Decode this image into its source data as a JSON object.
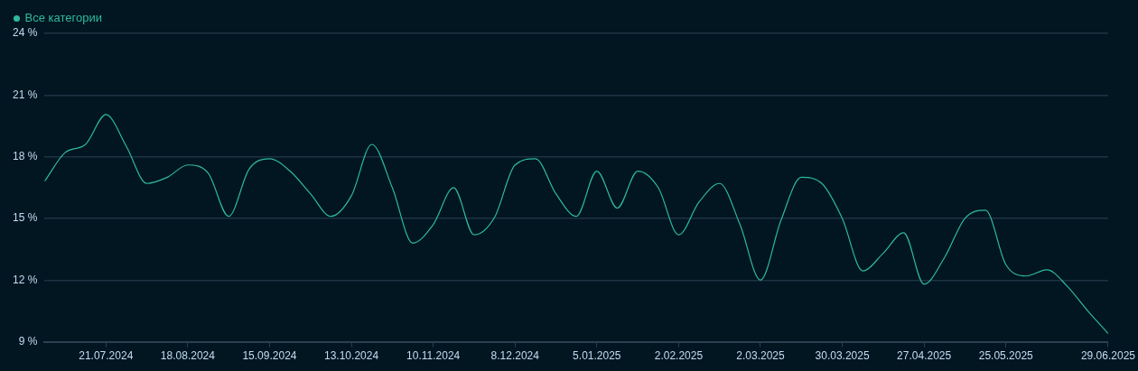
{
  "chart_data": {
    "type": "line",
    "x": [
      "2024-06-30",
      "2024-07-07",
      "2024-07-14",
      "2024-07-21",
      "2024-07-28",
      "2024-08-04",
      "2024-08-11",
      "2024-08-18",
      "2024-08-25",
      "2024-09-01",
      "2024-09-08",
      "2024-09-15",
      "2024-09-22",
      "2024-09-29",
      "2024-10-06",
      "2024-10-13",
      "2024-10-20",
      "2024-10-27",
      "2024-11-03",
      "2024-11-10",
      "2024-11-17",
      "2024-11-24",
      "2024-12-01",
      "2024-12-08",
      "2024-12-15",
      "2024-12-22",
      "2024-12-29",
      "2025-01-05",
      "2025-01-12",
      "2025-01-19",
      "2025-01-26",
      "2025-02-02",
      "2025-02-09",
      "2025-02-16",
      "2025-02-23",
      "2025-03-02",
      "2025-03-09",
      "2025-03-16",
      "2025-03-23",
      "2025-03-30",
      "2025-04-06",
      "2025-04-13",
      "2025-04-20",
      "2025-04-27",
      "2025-05-04",
      "2025-05-11",
      "2025-05-18",
      "2025-05-25",
      "2025-06-01",
      "2025-06-08",
      "2025-06-15",
      "2025-06-22",
      "2025-06-29"
    ],
    "series": [
      {
        "name": "Все категории",
        "color": "#2fb99a",
        "values": [
          16.8,
          18.2,
          18.6,
          20.05,
          18.5,
          16.7,
          17.0,
          17.6,
          17.2,
          15.1,
          17.4,
          17.9,
          17.3,
          16.2,
          15.1,
          16.1,
          18.6,
          16.5,
          13.8,
          14.7,
          16.5,
          14.2,
          15.05,
          17.6,
          17.9,
          16.2,
          15.1,
          17.3,
          15.5,
          17.3,
          16.5,
          14.2,
          15.8,
          16.7,
          14.7,
          12.0,
          14.9,
          17.0,
          16.7,
          15.0,
          12.45,
          13.3,
          14.3,
          11.8,
          13.1,
          15.0,
          15.4,
          12.75,
          12.2,
          12.5,
          11.7,
          10.5,
          9.4
        ]
      }
    ],
    "xlim": [
      "2024-06-30",
      "2025-06-29"
    ],
    "xticks": [
      {
        "value": "2024-07-21",
        "label": "21.07.2024"
      },
      {
        "value": "2024-08-18",
        "label": "18.08.2024"
      },
      {
        "value": "2024-09-15",
        "label": "15.09.2024"
      },
      {
        "value": "2024-10-13",
        "label": "13.10.2024"
      },
      {
        "value": "2024-11-10",
        "label": "10.11.2024"
      },
      {
        "value": "2024-12-08",
        "label": "8.12.2024"
      },
      {
        "value": "2025-01-05",
        "label": "5.01.2025"
      },
      {
        "value": "2025-02-02",
        "label": "2.02.2025"
      },
      {
        "value": "2025-03-02",
        "label": "2.03.2025"
      },
      {
        "value": "2025-03-30",
        "label": "30.03.2025"
      },
      {
        "value": "2025-04-27",
        "label": "27.04.2025"
      },
      {
        "value": "2025-05-25",
        "label": "25.05.2025"
      },
      {
        "value": "2025-06-29",
        "label": "29.06.2025"
      }
    ],
    "ylim": [
      9,
      24
    ],
    "yticks": [
      {
        "value": 9,
        "label": "9 %"
      },
      {
        "value": 12,
        "label": "12 %"
      },
      {
        "value": 15,
        "label": "15 %"
      },
      {
        "value": 18,
        "label": "18 %"
      },
      {
        "value": 21,
        "label": "21 %"
      },
      {
        "value": 24,
        "label": "24 %"
      }
    ],
    "grid": "y",
    "legend": "top left",
    "marker": "none",
    "line_style": "solid"
  }
}
